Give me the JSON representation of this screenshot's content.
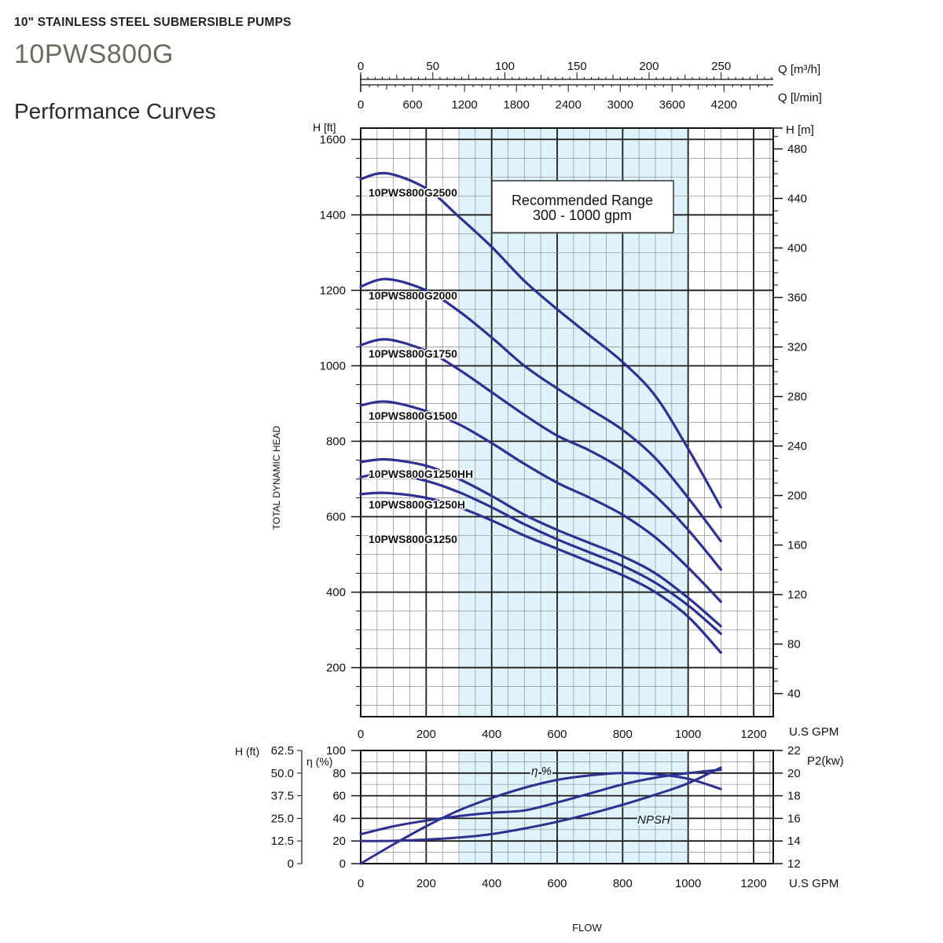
{
  "header": {
    "subtitle": "10\" STAINLESS STEEL SUBMERSIBLE PUMPS",
    "model": "10PWS800G",
    "section": "Performance Curves"
  },
  "colors": {
    "curve": "#2e3192",
    "band": "#dff3fb",
    "grid_major": "#1a1a1a",
    "grid_minor": "#8c8c8c"
  },
  "chart_data": [
    {
      "type": "line",
      "name": "head-curves",
      "ylabel": "TOTAL DYNAMIC HEAD",
      "xlabel": "FLOW",
      "x_unit": "U.S GPM",
      "y_unit": "H [ft]",
      "y_unit_right": "H [m]",
      "xlim": [
        0,
        1260
      ],
      "ylim": [
        70,
        1630
      ],
      "x_ticks": [
        0,
        200,
        400,
        600,
        800,
        1000,
        1200
      ],
      "y_ticks": [
        200,
        400,
        600,
        800,
        1000,
        1200,
        1400,
        1600
      ],
      "y_ticks_right": [
        40,
        80,
        120,
        160,
        200,
        240,
        280,
        320,
        360,
        400,
        440,
        480
      ],
      "top_axis_m3h": {
        "unit": "Q [m³/h]",
        "ticks": [
          0,
          50,
          100,
          150,
          200,
          250
        ]
      },
      "top_axis_lmin": {
        "unit": "Q [l/min]",
        "ticks": [
          0,
          600,
          1200,
          1800,
          2400,
          3000,
          3600,
          4200
        ]
      },
      "recommended_range": {
        "label_line1": "Recommended Range",
        "label_line2": "300 - 1000 gpm",
        "from": 300,
        "to": 1000
      },
      "series": [
        {
          "name": "10PWS800G2500",
          "x": [
            0,
            80,
            200,
            300,
            400,
            500,
            600,
            700,
            800,
            900,
            1000,
            1100
          ],
          "y": [
            1495,
            1510,
            1470,
            1395,
            1315,
            1225,
            1150,
            1080,
            1010,
            920,
            780,
            625
          ]
        },
        {
          "name": "10PWS800G2000",
          "x": [
            0,
            80,
            200,
            300,
            400,
            500,
            600,
            700,
            800,
            900,
            1000,
            1100
          ],
          "y": [
            1210,
            1230,
            1200,
            1145,
            1075,
            1000,
            940,
            885,
            830,
            755,
            650,
            535
          ]
        },
        {
          "name": "10PWS800G1750",
          "x": [
            0,
            80,
            200,
            300,
            400,
            500,
            600,
            700,
            800,
            900,
            1000,
            1100
          ],
          "y": [
            1055,
            1070,
            1040,
            990,
            930,
            870,
            815,
            775,
            725,
            655,
            565,
            460
          ]
        },
        {
          "name": "10PWS800G1500",
          "x": [
            0,
            80,
            200,
            300,
            400,
            500,
            600,
            700,
            800,
            900,
            1000,
            1100
          ],
          "y": [
            895,
            905,
            880,
            845,
            795,
            740,
            690,
            650,
            605,
            545,
            465,
            375
          ]
        },
        {
          "name": "10PWS800G1250HH",
          "x": [
            0,
            80,
            200,
            300,
            400,
            500,
            600,
            700,
            800,
            900,
            1000,
            1100
          ],
          "y": [
            745,
            752,
            735,
            700,
            655,
            605,
            565,
            530,
            495,
            450,
            385,
            310
          ]
        },
        {
          "name": "10PWS800G1250H",
          "x": [
            0,
            80,
            200,
            300,
            400,
            500,
            600,
            700,
            800,
            900,
            1000,
            1100
          ],
          "y": [
            705,
            715,
            695,
            665,
            625,
            580,
            540,
            505,
            470,
            425,
            365,
            290
          ]
        },
        {
          "name": "10PWS800G1250",
          "x": [
            0,
            80,
            200,
            300,
            400,
            500,
            600,
            700,
            800,
            900,
            1000,
            1100
          ],
          "y": [
            660,
            663,
            650,
            625,
            590,
            550,
            515,
            480,
            445,
            400,
            335,
            240
          ]
        }
      ]
    },
    {
      "type": "line",
      "name": "efficiency-npsh-power",
      "xlabel": "FLOW",
      "x_unit": "U.S GPM",
      "xlim": [
        0,
        1260
      ],
      "x_ticks": [
        0,
        200,
        400,
        600,
        800,
        1000,
        1200
      ],
      "left_axis_h": {
        "unit": "H (ft)",
        "ticks": [
          "62.5",
          "50.0",
          "37.5",
          "25.0",
          "12.5",
          "0"
        ]
      },
      "left_axis_eff": {
        "unit": "η (%)",
        "ticks": [
          100,
          80,
          60,
          40,
          20,
          0
        ],
        "ylim": [
          0,
          100
        ]
      },
      "right_axis_p2": {
        "unit": "P2(kw)",
        "ticks": [
          22,
          20,
          18,
          16,
          14,
          12
        ]
      },
      "labels": {
        "efficiency": "η %",
        "npsh": "NPSH"
      },
      "series": [
        {
          "name": "Efficiency",
          "unit": "%",
          "x": [
            0,
            100,
            200,
            300,
            400,
            500,
            600,
            700,
            800,
            900,
            1000,
            1100
          ],
          "y": [
            0,
            17,
            33,
            47,
            58,
            67,
            74,
            78,
            80,
            79,
            75,
            66
          ]
        },
        {
          "name": "P2",
          "unit": "kw",
          "x": [
            0,
            100,
            200,
            300,
            400,
            500,
            600,
            700,
            800,
            900,
            1000,
            1100
          ],
          "y": [
            14.6,
            15.3,
            15.8,
            16.2,
            16.5,
            16.7,
            17.4,
            18.2,
            19.0,
            19.6,
            20.0,
            20.3
          ]
        },
        {
          "name": "NPSH",
          "unit": "ft",
          "x": [
            0,
            100,
            200,
            300,
            400,
            500,
            600,
            700,
            800,
            900,
            1000,
            1100
          ],
          "y": [
            12.5,
            12.6,
            13.3,
            14.4,
            16.3,
            19.4,
            23.1,
            27.5,
            32.5,
            38.1,
            44.4,
            53.1
          ]
        }
      ]
    }
  ]
}
